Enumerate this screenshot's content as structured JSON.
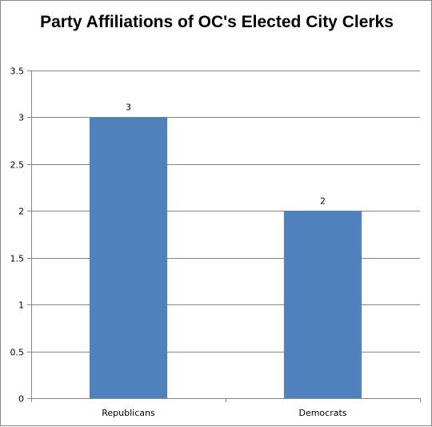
{
  "chart_data": {
    "type": "bar",
    "title": "Party Affiliations of OC's Elected City Clerks",
    "categories": [
      "Republicans",
      "Democrats"
    ],
    "values": [
      3,
      2
    ],
    "data_labels": [
      "3",
      "2"
    ],
    "ylim": [
      0,
      3.5
    ],
    "yticks": [
      0,
      0.5,
      1,
      1.5,
      2,
      2.5,
      3,
      3.5
    ],
    "ytick_labels": [
      "0",
      "0.5",
      "1",
      "1.5",
      "2",
      "2.5",
      "3",
      "3.5"
    ],
    "xlabel": "",
    "ylabel": "",
    "grid": true,
    "legend": "none",
    "bar_color": "#4f81bd",
    "grid_color": "#868686"
  }
}
